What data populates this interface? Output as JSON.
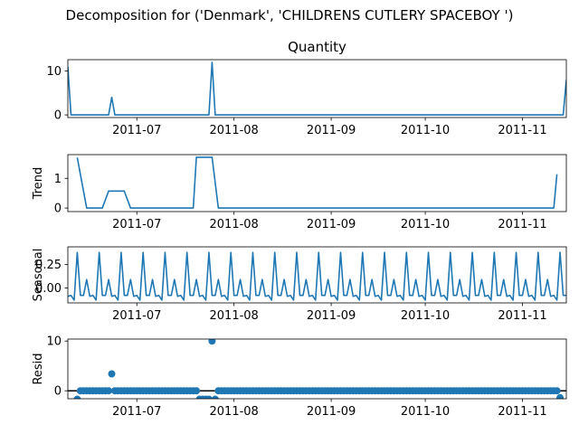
{
  "figure_title": "Decomposition for ('Denmark', 'CHILDRENS CUTLERY SPACEBOY ')",
  "colors": {
    "series": "#1f77b4",
    "zero_line": "#000000",
    "axes": "#000000"
  },
  "chart_data": [
    {
      "type": "line",
      "title": "Quantity",
      "ylabel": "",
      "x_range": [
        "2011-06-09",
        "2011-11-15"
      ],
      "ylim": [
        -0.6,
        12.6
      ],
      "y_ticks": [
        0,
        10
      ],
      "x_ticks": [
        "2011-07",
        "2011-08",
        "2011-09",
        "2011-10",
        "2011-11"
      ],
      "grid": false,
      "points": [
        {
          "x": "2011-06-09",
          "y": 11
        },
        {
          "x": "2011-06-10",
          "y": 0
        },
        {
          "x": "2011-06-22",
          "y": 0
        },
        {
          "x": "2011-06-23",
          "y": 4
        },
        {
          "x": "2011-06-24",
          "y": 0
        },
        {
          "x": "2011-07-24",
          "y": 0
        },
        {
          "x": "2011-07-25",
          "y": 12
        },
        {
          "x": "2011-07-26",
          "y": 0
        },
        {
          "x": "2011-11-14",
          "y": 0
        },
        {
          "x": "2011-11-15",
          "y": 8
        }
      ]
    },
    {
      "type": "line",
      "title": "",
      "ylabel": "Trend",
      "x_range": [
        "2011-06-09",
        "2011-11-15"
      ],
      "ylim": [
        -0.12,
        1.8
      ],
      "y_ticks": [
        0,
        1
      ],
      "x_ticks": [
        "2011-07",
        "2011-08",
        "2011-09",
        "2011-10",
        "2011-11"
      ],
      "grid": false,
      "points": [
        {
          "x": "2011-06-12",
          "y": 1.7
        },
        {
          "x": "2011-06-15",
          "y": 0
        },
        {
          "x": "2011-06-20",
          "y": 0
        },
        {
          "x": "2011-06-22",
          "y": 0.57
        },
        {
          "x": "2011-06-27",
          "y": 0.57
        },
        {
          "x": "2011-06-29",
          "y": 0
        },
        {
          "x": "2011-07-19",
          "y": 0
        },
        {
          "x": "2011-07-20",
          "y": 1.71
        },
        {
          "x": "2011-07-25",
          "y": 1.71
        },
        {
          "x": "2011-07-27",
          "y": 0
        },
        {
          "x": "2011-11-11",
          "y": 0
        },
        {
          "x": "2011-11-12",
          "y": 1.14
        }
      ]
    },
    {
      "type": "line",
      "title": "",
      "ylabel": "Seasonal",
      "x_range": [
        "2011-06-09",
        "2011-11-15"
      ],
      "ylim": [
        -0.16,
        0.44
      ],
      "y_ticks": [
        0.0,
        0.25
      ],
      "y_tick_labels": [
        "0.00",
        "0.25"
      ],
      "x_ticks": [
        "2011-07",
        "2011-08",
        "2011-09",
        "2011-10",
        "2011-11"
      ],
      "grid": false,
      "period_days": 7,
      "weekly_pattern": [
        0.38,
        -0.08,
        -0.08,
        0.09,
        -0.09,
        -0.08,
        -0.13
      ],
      "pattern_start": "2011-06-12"
    },
    {
      "type": "scatter",
      "title": "",
      "ylabel": "Resid",
      "x_range": [
        "2011-06-09",
        "2011-11-15"
      ],
      "ylim": [
        -1.6,
        10.4
      ],
      "y_ticks": [
        0,
        10
      ],
      "x_ticks": [
        "2011-07",
        "2011-08",
        "2011-09",
        "2011-10",
        "2011-11"
      ],
      "grid": false,
      "zero_line": true,
      "baseline": {
        "start": "2011-06-12",
        "end": "2011-11-13",
        "value": 0.0
      },
      "outliers": [
        {
          "x": "2011-06-12",
          "y": -1.7
        },
        {
          "x": "2011-06-23",
          "y": 3.4
        },
        {
          "x": "2011-07-21",
          "y": -1.7
        },
        {
          "x": "2011-07-22",
          "y": -1.7
        },
        {
          "x": "2011-07-23",
          "y": -1.7
        },
        {
          "x": "2011-07-24",
          "y": -1.7
        },
        {
          "x": "2011-07-25",
          "y": 10.0
        },
        {
          "x": "2011-07-26",
          "y": -1.7
        },
        {
          "x": "2011-11-13",
          "y": -1.4
        }
      ]
    }
  ]
}
